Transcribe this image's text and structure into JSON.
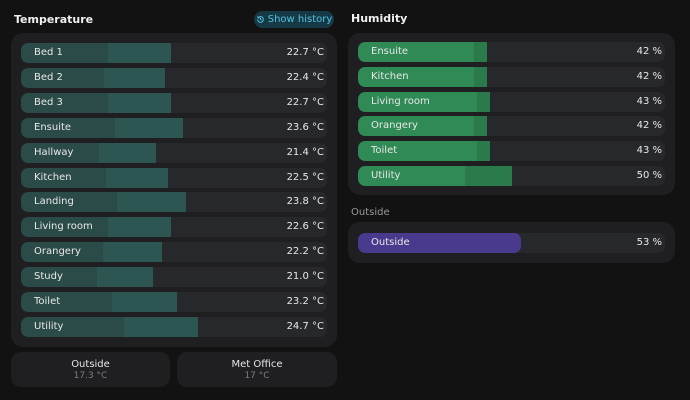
{
  "temperature": {
    "title": "Temperature",
    "history_button": "Show history",
    "rows": [
      {
        "label": "Bed 1",
        "value": "22.7 °C",
        "level": 0.49
      },
      {
        "label": "Bed 2",
        "value": "22.4 °C",
        "level": 0.47
      },
      {
        "label": "Bed 3",
        "value": "22.7 °C",
        "level": 0.49
      },
      {
        "label": "Ensuite",
        "value": "23.6 °C",
        "level": 0.53
      },
      {
        "label": "Hallway",
        "value": "21.4 °C",
        "level": 0.44
      },
      {
        "label": "Kitchen",
        "value": "22.5 °C",
        "level": 0.48
      },
      {
        "label": "Landing",
        "value": "23.8 °C",
        "level": 0.54
      },
      {
        "label": "Living room",
        "value": "22.6 °C",
        "level": 0.49
      },
      {
        "label": "Orangery",
        "value": "22.2 °C",
        "level": 0.46
      },
      {
        "label": "Study",
        "value": "21.0 °C",
        "level": 0.43
      },
      {
        "label": "Toilet",
        "value": "23.2 °C",
        "level": 0.51
      },
      {
        "label": "Utility",
        "value": "24.7 °C",
        "level": 0.58
      }
    ]
  },
  "humidity": {
    "title": "Humidity",
    "rows": [
      {
        "label": "Ensuite",
        "value": "42 %",
        "level": 0.42
      },
      {
        "label": "Kitchen",
        "value": "42 %",
        "level": 0.42
      },
      {
        "label": "Living room",
        "value": "43 %",
        "level": 0.43
      },
      {
        "label": "Orangery",
        "value": "42 %",
        "level": 0.42
      },
      {
        "label": "Toilet",
        "value": "43 %",
        "level": 0.43
      },
      {
        "label": "Utility",
        "value": "50 %",
        "level": 0.5
      }
    ]
  },
  "outside": {
    "title": "Outside",
    "rows": [
      {
        "label": "Outside",
        "value": "53 %",
        "level": 0.53
      }
    ]
  },
  "tiles": [
    {
      "name": "Outside",
      "value": "17.3 °C"
    },
    {
      "name": "Met Office",
      "value": "17 °C"
    }
  ],
  "colors": {
    "background": "#121212",
    "card": "#1f1f22",
    "temperature_bar": "#2b4b49",
    "humidity_bar": "#2f8a55",
    "outside_bar": "#4a3a8e",
    "accent": "#54c1e0"
  },
  "icons": {
    "history": "history-icon"
  }
}
